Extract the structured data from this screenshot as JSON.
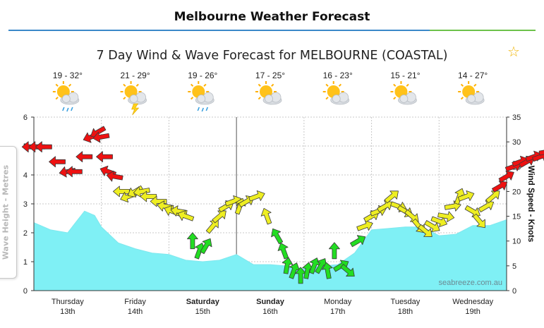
{
  "header": {
    "title": "Melbourne Weather Forecast"
  },
  "actions": {
    "favourite_icon": "star-outline-icon"
  },
  "chart_data": {
    "type": "line",
    "title": "7 Day Wind & Wave Forecast for MELBOURNE (COASTAL)",
    "watermark": "seabreeze.com.au",
    "y_left": {
      "label": "Wave Height - Metres",
      "min": 0,
      "max": 6,
      "ticks": [
        0,
        1,
        2,
        3,
        4,
        5,
        6
      ]
    },
    "y_right": {
      "label": "Wind Speed - Knots",
      "min": 0,
      "max": 35,
      "ticks": [
        0,
        5,
        10,
        15,
        20,
        25,
        30,
        35
      ]
    },
    "x": {
      "min": 0,
      "max": 7,
      "unit": "days from Thursday 13th 00:00"
    },
    "grid": true,
    "days": [
      {
        "name": "Thursday",
        "date": "13th",
        "temp": "19 - 32°",
        "icon": "showers-icon",
        "bold": false
      },
      {
        "name": "Friday",
        "date": "14th",
        "temp": "21 - 29°",
        "icon": "thunderstorm-icon",
        "bold": false
      },
      {
        "name": "Saturday",
        "date": "15th",
        "temp": "19 - 26°",
        "icon": "showers-icon",
        "bold": true
      },
      {
        "name": "Sunday",
        "date": "16th",
        "temp": "17 - 25°",
        "icon": "partly-cloudy-icon",
        "bold": true
      },
      {
        "name": "Monday",
        "date": "17th",
        "temp": "16 - 23°",
        "icon": "partly-cloudy-icon",
        "bold": false
      },
      {
        "name": "Tuesday",
        "date": "18th",
        "temp": "15 - 21°",
        "icon": "partly-cloudy-icon",
        "bold": false
      },
      {
        "name": "Wednesday",
        "date": "19th",
        "temp": "14 - 27°",
        "icon": "partly-cloudy-icon",
        "bold": false
      }
    ],
    "wave_series": {
      "name": "Wave Height",
      "color": "#7ff0f5",
      "x": [
        -0.2,
        0,
        0.25,
        0.5,
        0.6,
        0.75,
        0.9,
        1.0,
        1.25,
        1.5,
        1.75,
        2.0,
        2.25,
        2.5,
        2.75,
        3.0,
        3.25,
        3.5,
        3.75,
        4.0,
        4.25,
        4.5,
        4.75,
        5.0,
        5.25,
        5.5,
        5.75,
        6.0,
        6.25,
        6.5,
        6.75,
        7.0
      ],
      "values": [
        2.35,
        2.35,
        2.1,
        2.0,
        2.3,
        2.75,
        2.6,
        2.2,
        1.65,
        1.45,
        1.3,
        1.25,
        1.05,
        1.0,
        1.05,
        1.25,
        0.9,
        0.9,
        0.85,
        0.75,
        0.85,
        0.9,
        1.3,
        2.1,
        2.15,
        2.2,
        2.2,
        1.9,
        1.95,
        2.25,
        2.25,
        2.45
      ]
    },
    "wind_series": {
      "name": "Wind",
      "colors": {
        "light": "#22dd22",
        "moderate": "#eeee22",
        "strong": "#ee1111"
      },
      "points": [
        {
          "x": -0.05,
          "kt": 29,
          "dir": 90
        },
        {
          "x": 0.05,
          "kt": 29,
          "dir": 90
        },
        {
          "x": 0.15,
          "kt": 29,
          "dir": 90
        },
        {
          "x": 0.35,
          "kt": 26,
          "dir": 90
        },
        {
          "x": 0.5,
          "kt": 24,
          "dir": 80
        },
        {
          "x": 0.6,
          "kt": 24,
          "dir": 90
        },
        {
          "x": 0.75,
          "kt": 27,
          "dir": 90
        },
        {
          "x": 0.85,
          "kt": 31,
          "dir": 70
        },
        {
          "x": 0.95,
          "kt": 32,
          "dir": 60
        },
        {
          "x": 1.0,
          "kt": 31,
          "dir": 80
        },
        {
          "x": 1.05,
          "kt": 27,
          "dir": 90
        },
        {
          "x": 1.1,
          "kt": 24,
          "dir": 110
        },
        {
          "x": 1.2,
          "kt": 23,
          "dir": 100
        },
        {
          "x": 1.3,
          "kt": 20,
          "dir": 90
        },
        {
          "x": 1.4,
          "kt": 19,
          "dir": 70
        },
        {
          "x": 1.5,
          "kt": 20,
          "dir": 60
        },
        {
          "x": 1.6,
          "kt": 20,
          "dir": 80
        },
        {
          "x": 1.7,
          "kt": 19,
          "dir": 90
        },
        {
          "x": 1.85,
          "kt": 18,
          "dir": 90
        },
        {
          "x": 1.95,
          "kt": 17,
          "dir": 100
        },
        {
          "x": 2.05,
          "kt": 16,
          "dir": 110
        },
        {
          "x": 2.15,
          "kt": 16,
          "dir": 100
        },
        {
          "x": 2.25,
          "kt": 15,
          "dir": 110
        },
        {
          "x": 2.35,
          "kt": 10,
          "dir": 180
        },
        {
          "x": 2.45,
          "kt": 8,
          "dir": 200
        },
        {
          "x": 2.55,
          "kt": 9,
          "dir": 210
        },
        {
          "x": 2.65,
          "kt": 13,
          "dir": 220
        },
        {
          "x": 2.75,
          "kt": 15,
          "dir": 230
        },
        {
          "x": 2.85,
          "kt": 17,
          "dir": 240
        },
        {
          "x": 2.95,
          "kt": 18,
          "dir": 250
        },
        {
          "x": 3.05,
          "kt": 17,
          "dir": 200
        },
        {
          "x": 3.15,
          "kt": 18,
          "dir": 240
        },
        {
          "x": 3.3,
          "kt": 19,
          "dir": 250
        },
        {
          "x": 3.45,
          "kt": 15,
          "dir": 160
        },
        {
          "x": 3.6,
          "kt": 11,
          "dir": 150
        },
        {
          "x": 3.7,
          "kt": 8,
          "dir": 160
        },
        {
          "x": 3.75,
          "kt": 5,
          "dir": 190
        },
        {
          "x": 3.85,
          "kt": 4,
          "dir": 200
        },
        {
          "x": 3.95,
          "kt": 3,
          "dir": 180
        },
        {
          "x": 4.05,
          "kt": 4,
          "dir": 190
        },
        {
          "x": 4.15,
          "kt": 5,
          "dir": 200
        },
        {
          "x": 4.25,
          "kt": 5,
          "dir": 210
        },
        {
          "x": 4.35,
          "kt": 4,
          "dir": 170
        },
        {
          "x": 4.45,
          "kt": 8,
          "dir": 180
        },
        {
          "x": 4.55,
          "kt": 5,
          "dir": 240
        },
        {
          "x": 4.65,
          "kt": 4,
          "dir": 310
        },
        {
          "x": 4.8,
          "kt": 10,
          "dir": 240
        },
        {
          "x": 4.9,
          "kt": 13,
          "dir": 250
        },
        {
          "x": 5.0,
          "kt": 15,
          "dir": 240
        },
        {
          "x": 5.1,
          "kt": 16,
          "dir": 250
        },
        {
          "x": 5.2,
          "kt": 17,
          "dir": 240
        },
        {
          "x": 5.3,
          "kt": 19,
          "dir": 230
        },
        {
          "x": 5.4,
          "kt": 17,
          "dir": 290
        },
        {
          "x": 5.5,
          "kt": 16,
          "dir": 300
        },
        {
          "x": 5.6,
          "kt": 15,
          "dir": 310
        },
        {
          "x": 5.7,
          "kt": 13,
          "dir": 320
        },
        {
          "x": 5.8,
          "kt": 12,
          "dir": 310
        },
        {
          "x": 5.9,
          "kt": 13,
          "dir": 300
        },
        {
          "x": 6.0,
          "kt": 14,
          "dir": 290
        },
        {
          "x": 6.1,
          "kt": 15,
          "dir": 280
        },
        {
          "x": 6.2,
          "kt": 17,
          "dir": 260
        },
        {
          "x": 6.3,
          "kt": 19,
          "dir": 200
        },
        {
          "x": 6.4,
          "kt": 19,
          "dir": 250
        },
        {
          "x": 6.5,
          "kt": 16,
          "dir": 300
        },
        {
          "x": 6.6,
          "kt": 14,
          "dir": 320
        },
        {
          "x": 6.7,
          "kt": 17,
          "dir": 240
        },
        {
          "x": 6.8,
          "kt": 19,
          "dir": 230
        },
        {
          "x": 6.9,
          "kt": 21,
          "dir": 240
        },
        {
          "x": 7.0,
          "kt": 23,
          "dir": 240
        },
        {
          "x": 7.1,
          "kt": 25,
          "dir": 250
        },
        {
          "x": 7.2,
          "kt": 26,
          "dir": 250
        },
        {
          "x": 7.3,
          "kt": 26,
          "dir": 240
        },
        {
          "x": 7.4,
          "kt": 27,
          "dir": 250
        },
        {
          "x": 7.5,
          "kt": 27,
          "dir": 250
        },
        {
          "x": 7.6,
          "kt": 28,
          "dir": 260
        },
        {
          "x": 7.7,
          "kt": 27,
          "dir": 260
        },
        {
          "x": 7.8,
          "kt": 28,
          "dir": 250
        },
        {
          "x": 7.9,
          "kt": 27,
          "dir": 250
        }
      ]
    }
  }
}
